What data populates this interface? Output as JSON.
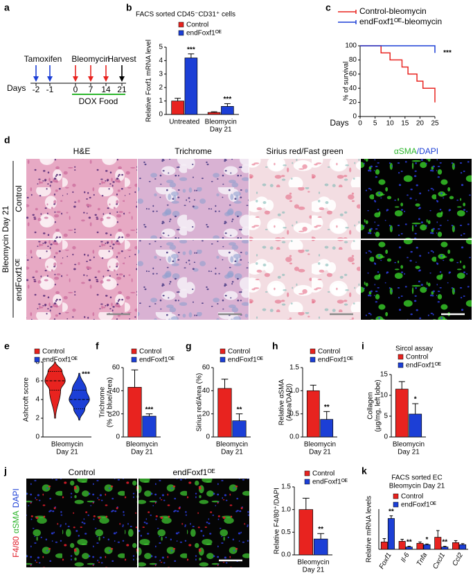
{
  "panel_labels": [
    "a",
    "b",
    "c",
    "d",
    "e",
    "f",
    "g",
    "h",
    "i",
    "j",
    "k"
  ],
  "timeline": {
    "axis_label": "Days",
    "days": [
      "-2",
      "-1",
      "0",
      "7",
      "14",
      "21"
    ],
    "treatments": [
      "Tamoxifen",
      "Bleomycin",
      "Harvest"
    ],
    "diet": "DOX Food"
  },
  "histology": {
    "columns": [
      "H&E",
      "Trichrome",
      "Sirius red/Fast green"
    ],
    "fluor_column": [
      "αSMA",
      "/DAPI"
    ],
    "rows": [
      "Control",
      "endFoxf1ᴼᴱ"
    ],
    "side_label": "Bleomycin Day 21"
  },
  "macrophage_images": {
    "columns": [
      "Control",
      "endFoxf1ᴼᴱ"
    ],
    "side_label": [
      "F4/80",
      "αSMA",
      "DAPI"
    ]
  },
  "chart_data": [
    {
      "type": "bar",
      "title": "FACS sorted CD45⁻CD31⁺ cells",
      "ylabel": [
        "Relative Foxf1 mRNA level"
      ],
      "categories": [
        [
          "Untreated"
        ],
        [
          "Bleomycin",
          "Day 21"
        ]
      ],
      "series": [
        {
          "name": "Control",
          "color": "#e8231f",
          "values": [
            1.0,
            0.15
          ],
          "errors": [
            0.2,
            0.05
          ]
        },
        {
          "name": "endFoxf1ᴼᴱ",
          "color": "#1c3fd6",
          "values": [
            4.2,
            0.6
          ],
          "errors": [
            0.3,
            0.2
          ]
        }
      ],
      "annotations": [
        "***",
        "***"
      ],
      "ylim": [
        0,
        5
      ],
      "yticks": [
        0,
        1,
        2,
        3,
        4,
        5
      ]
    },
    {
      "type": "step",
      "ylabel": [
        "% of survival"
      ],
      "xlabel": "Days",
      "series": [
        {
          "name": "Control-bleomycin",
          "color": "#e8231f",
          "x": [
            0,
            7,
            10,
            14,
            16,
            19,
            21,
            25
          ],
          "values": [
            100,
            90,
            80,
            70,
            60,
            50,
            40,
            20
          ]
        },
        {
          "name": "endFoxf1ᴼᴱ-bleomycin",
          "color": "#1c3fd6",
          "x": [
            0,
            25
          ],
          "values": [
            100,
            90
          ]
        }
      ],
      "annotations": [
        "***"
      ],
      "xlim": [
        0,
        25
      ],
      "xticks": [
        0,
        5,
        10,
        15,
        20,
        25
      ],
      "ylim": [
        0,
        100
      ],
      "yticks": [
        0,
        20,
        40,
        60,
        80,
        100
      ]
    },
    {
      "type": "violin",
      "ylabel": [
        "Ashcroft score"
      ],
      "categories": [
        [
          "Bleomycin",
          "Day 21"
        ]
      ],
      "series": [
        {
          "name": "Control",
          "color": "#e8231f",
          "min": 2,
          "q1": 5,
          "median": 6,
          "q3": 7,
          "max": 8
        },
        {
          "name": "endFoxf1ᴼᴱ",
          "color": "#1c3fd6",
          "min": 1.8,
          "q1": 3,
          "median": 4,
          "q3": 5,
          "max": 6.8
        }
      ],
      "annotations": [
        "***"
      ],
      "ylim": [
        0,
        8
      ],
      "yticks": [
        0,
        2,
        4,
        6,
        8
      ]
    },
    {
      "type": "bar",
      "ylabel": [
        "Trichrome",
        "(% of blue/Area)"
      ],
      "categories": [
        [
          "Bleomycin",
          "Day 21"
        ]
      ],
      "series": [
        {
          "name": "Control",
          "color": "#e8231f",
          "values": [
            43
          ],
          "errors": [
            15
          ]
        },
        {
          "name": "endFoxf1ᴼᴱ",
          "color": "#1c3fd6",
          "values": [
            18
          ],
          "errors": [
            2
          ]
        }
      ],
      "annotations": [
        "***"
      ],
      "ylim": [
        0,
        60
      ],
      "yticks": [
        0,
        20,
        40,
        60
      ]
    },
    {
      "type": "bar",
      "ylabel": [
        "Sirius red/Area (%)"
      ],
      "categories": [
        [
          "Bleomycin",
          "Day 21"
        ]
      ],
      "series": [
        {
          "name": "Control",
          "color": "#e8231f",
          "values": [
            42
          ],
          "errors": [
            8
          ]
        },
        {
          "name": "endFoxf1ᴼᴱ",
          "color": "#1c3fd6",
          "values": [
            14
          ],
          "errors": [
            6
          ]
        }
      ],
      "annotations": [
        "**"
      ],
      "ylim": [
        0,
        60
      ],
      "yticks": [
        0,
        20,
        40,
        60
      ]
    },
    {
      "type": "bar",
      "ylabel": [
        "Relative αSMA",
        "(Area/DAPI)"
      ],
      "categories": [
        [
          "Bleomycin",
          "Day 21"
        ]
      ],
      "series": [
        {
          "name": "Control",
          "color": "#e8231f",
          "values": [
            1.0
          ],
          "errors": [
            0.12
          ]
        },
        {
          "name": "endFoxf1ᴼᴱ",
          "color": "#1c3fd6",
          "values": [
            0.38
          ],
          "errors": [
            0.17
          ]
        }
      ],
      "annotations": [
        "**"
      ],
      "ylim": [
        0,
        1.5
      ],
      "yticks": [
        {
          "value": 0,
          "label": "0.0"
        },
        {
          "value": 0.5,
          "label": "0.5"
        },
        {
          "value": 1,
          "label": "1.0"
        },
        {
          "value": 1.5,
          "label": "1.5"
        }
      ]
    },
    {
      "type": "bar",
      "title": "Sircol assay",
      "ylabel": [
        "Collagen",
        "(µg/mg, left lobe)"
      ],
      "categories": [
        [
          "Bleomycin",
          "Day 21"
        ]
      ],
      "series": [
        {
          "name": "Control",
          "color": "#e8231f",
          "values": [
            11.5
          ],
          "errors": [
            1.8
          ]
        },
        {
          "name": "endFoxf1ᴼᴱ",
          "color": "#1c3fd6",
          "values": [
            5.5
          ],
          "errors": [
            2.5
          ]
        }
      ],
      "annotations": [
        "*"
      ],
      "ylim": [
        0,
        15
      ],
      "yticks": [
        0,
        5,
        10,
        15
      ]
    },
    {
      "type": "bar",
      "ylabel": [
        "Relative F4/80⁺/DAPI"
      ],
      "categories": [
        [
          "Bleomycin",
          "Day 21"
        ]
      ],
      "series": [
        {
          "name": "Control",
          "color": "#e8231f",
          "values": [
            1.0
          ],
          "errors": [
            0.25
          ]
        },
        {
          "name": "endFoxf1ᴼᴱ",
          "color": "#1c3fd6",
          "values": [
            0.35
          ],
          "errors": [
            0.12
          ]
        }
      ],
      "annotations": [
        "**"
      ],
      "ylim": [
        0,
        1.5
      ],
      "yticks": [
        {
          "value": 0,
          "label": "0.0"
        },
        {
          "value": 0.5,
          "label": "0.5"
        },
        {
          "value": 1,
          "label": "1.0"
        },
        {
          "value": 1.5,
          "label": "1.5"
        }
      ]
    },
    {
      "type": "bar",
      "title": "FACS sorted EC",
      "subtitle": "Bleomycin Day 21",
      "ylabel": [
        "Relative mRNA levels"
      ],
      "categories": [
        [
          "Foxf1"
        ],
        [
          "Il-6"
        ],
        [
          "Tnfa"
        ],
        [
          "Cxcl1"
        ],
        [
          "Ccl2"
        ]
      ],
      "series": [
        {
          "name": "Control",
          "color": "#e8231f",
          "values": [
            1.1,
            1.2,
            0.9,
            1.8,
            1.0
          ],
          "errors": [
            0.5,
            0.3,
            0.2,
            1.0,
            0.3
          ]
        },
        {
          "name": "endFoxf1ᴼᴱ",
          "color": "#1c3fd6",
          "values": [
            4.6,
            0.35,
            0.7,
            0.35,
            0.7
          ],
          "errors": [
            0.4,
            0.1,
            0.1,
            0.1,
            0.15
          ]
        }
      ],
      "annotations": [
        "**",
        "**",
        "*",
        "**",
        null
      ],
      "ylim": [
        0,
        6
      ]
    }
  ]
}
